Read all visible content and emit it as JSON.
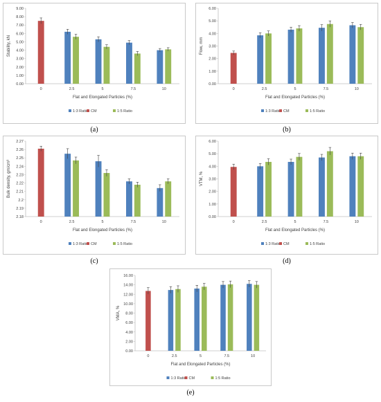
{
  "colors": {
    "ratio13": "#4F81BD",
    "cm": "#C0504D",
    "ratio15": "#9BBB59",
    "border": "#c8c8c8",
    "axis": "#bfbfbf",
    "errorbar": "#404040"
  },
  "legend": [
    "1:3 Ratio",
    "CM",
    "1:5 Ratio"
  ],
  "chart_data": [
    {
      "id": "a",
      "label": "(a)",
      "type": "bar",
      "categories": [
        "0",
        "2.5",
        "5",
        "7.5",
        "10"
      ],
      "ylabel": "Stability, kN",
      "xlabel": "Flat and Elongated Particles (%)",
      "ylim": [
        0,
        9
      ],
      "yticks": [
        "0.00",
        "1.00",
        "2.00",
        "3.00",
        "4.00",
        "5.00",
        "6.00",
        "7.00",
        "8.00",
        "9.00"
      ],
      "ystep": 1,
      "series": [
        {
          "name": "1:3 Ratio",
          "key": "ratio13",
          "values": [
            null,
            6.2,
            5.3,
            4.9,
            4.0
          ],
          "errors": [
            null,
            0.3,
            0.3,
            0.25,
            0.2
          ]
        },
        {
          "name": "CM",
          "key": "cm",
          "values": [
            7.5,
            null,
            null,
            null,
            null
          ],
          "errors": [
            0.35,
            null,
            null,
            null,
            null
          ]
        },
        {
          "name": "1:5 Ratio",
          "key": "ratio15",
          "values": [
            null,
            5.6,
            4.4,
            3.6,
            4.1
          ],
          "errors": [
            null,
            0.3,
            0.25,
            0.25,
            0.2
          ]
        }
      ]
    },
    {
      "id": "b",
      "label": "(b)",
      "type": "bar",
      "categories": [
        "0",
        "2.5",
        "5",
        "7.5",
        "10"
      ],
      "ylabel": "Flow, mm",
      "xlabel": "Flat and Elongated Particles (%)",
      "ylim": [
        0,
        6
      ],
      "yticks": [
        "0.00",
        "1.00",
        "2.00",
        "3.00",
        "4.00",
        "5.00",
        "6.00"
      ],
      "ystep": 1,
      "series": [
        {
          "name": "1:3 Ratio",
          "key": "ratio13",
          "values": [
            null,
            3.85,
            4.3,
            4.45,
            4.65
          ],
          "errors": [
            null,
            0.2,
            0.2,
            0.25,
            0.22
          ]
        },
        {
          "name": "CM",
          "key": "cm",
          "values": [
            2.45,
            null,
            null,
            null,
            null
          ],
          "errors": [
            0.15,
            null,
            null,
            null,
            null
          ]
        },
        {
          "name": "1:5 Ratio",
          "key": "ratio15",
          "values": [
            null,
            4.0,
            4.4,
            4.75,
            4.5
          ],
          "errors": [
            null,
            0.2,
            0.22,
            0.25,
            0.22
          ]
        }
      ]
    },
    {
      "id": "c",
      "label": "(c)",
      "type": "bar",
      "categories": [
        "0",
        "2.5",
        "5",
        "7.5",
        "10"
      ],
      "ylabel": "Bulk density, gm/cm³",
      "xlabel": "Flat and Elongated Particles (%)",
      "ylim": [
        2.18,
        2.27
      ],
      "yticks": [
        "2.18",
        "2.19",
        "2.2",
        "2.21",
        "2.22",
        "2.23",
        "2.24",
        "2.25",
        "2.26",
        "2.27"
      ],
      "ystep": 0.01,
      "series": [
        {
          "name": "1:3 Ratio",
          "key": "ratio13",
          "values": [
            null,
            2.255,
            2.246,
            2.222,
            2.214
          ],
          "errors": [
            null,
            0.006,
            0.007,
            0.003,
            0.004
          ]
        },
        {
          "name": "CM",
          "key": "cm",
          "values": [
            2.261,
            null,
            null,
            null,
            null
          ],
          "errors": [
            0.003,
            null,
            null,
            null,
            null
          ]
        },
        {
          "name": "1:5 Ratio",
          "key": "ratio15",
          "values": [
            null,
            2.247,
            2.232,
            2.218,
            2.222
          ],
          "errors": [
            null,
            0.004,
            0.004,
            0.003,
            0.003
          ]
        }
      ]
    },
    {
      "id": "d",
      "label": "(d)",
      "type": "bar",
      "categories": [
        "0",
        "2.5",
        "5",
        "7.5",
        "10"
      ],
      "ylabel": "VTM, %",
      "xlabel": "Flat and Elongated Particles (%)",
      "ylim": [
        0,
        6
      ],
      "yticks": [
        "0.00",
        "1.00",
        "2.00",
        "3.00",
        "4.00",
        "5.00",
        "6.00"
      ],
      "ystep": 1,
      "series": [
        {
          "name": "1:3 Ratio",
          "key": "ratio13",
          "values": [
            null,
            4.0,
            4.35,
            4.7,
            4.8
          ],
          "errors": [
            null,
            0.22,
            0.22,
            0.25,
            0.25
          ]
        },
        {
          "name": "CM",
          "key": "cm",
          "values": [
            3.95,
            null,
            null,
            null,
            null
          ],
          "errors": [
            0.22,
            null,
            null,
            null,
            null
          ]
        },
        {
          "name": "1:5 Ratio",
          "key": "ratio15",
          "values": [
            null,
            4.35,
            4.75,
            5.2,
            4.8
          ],
          "errors": [
            null,
            0.25,
            0.27,
            0.3,
            0.25
          ]
        }
      ]
    },
    {
      "id": "e",
      "label": "(e)",
      "type": "bar",
      "categories": [
        "0",
        "2.5",
        "5",
        "7.5",
        "10"
      ],
      "ylabel": "VMA, %",
      "xlabel": "Flat and Elongated Particles (%)",
      "ylim": [
        0,
        16
      ],
      "yticks": [
        "0.00",
        "2.00",
        "4.00",
        "6.00",
        "8.00",
        "10.00",
        "12.00",
        "14.00",
        "16.00"
      ],
      "ystep": 2,
      "series": [
        {
          "name": "1:3 Ratio",
          "key": "ratio13",
          "values": [
            null,
            12.9,
            13.2,
            14.0,
            14.2
          ],
          "errors": [
            null,
            0.7,
            0.7,
            0.7,
            0.7
          ]
        },
        {
          "name": "CM",
          "key": "cm",
          "values": [
            12.7,
            null,
            null,
            null,
            null
          ],
          "errors": [
            0.7,
            null,
            null,
            null,
            null
          ]
        },
        {
          "name": "1:5 Ratio",
          "key": "ratio15",
          "values": [
            null,
            13.1,
            13.6,
            14.1,
            14.0
          ],
          "errors": [
            null,
            0.7,
            0.7,
            0.7,
            0.7
          ]
        }
      ]
    }
  ]
}
